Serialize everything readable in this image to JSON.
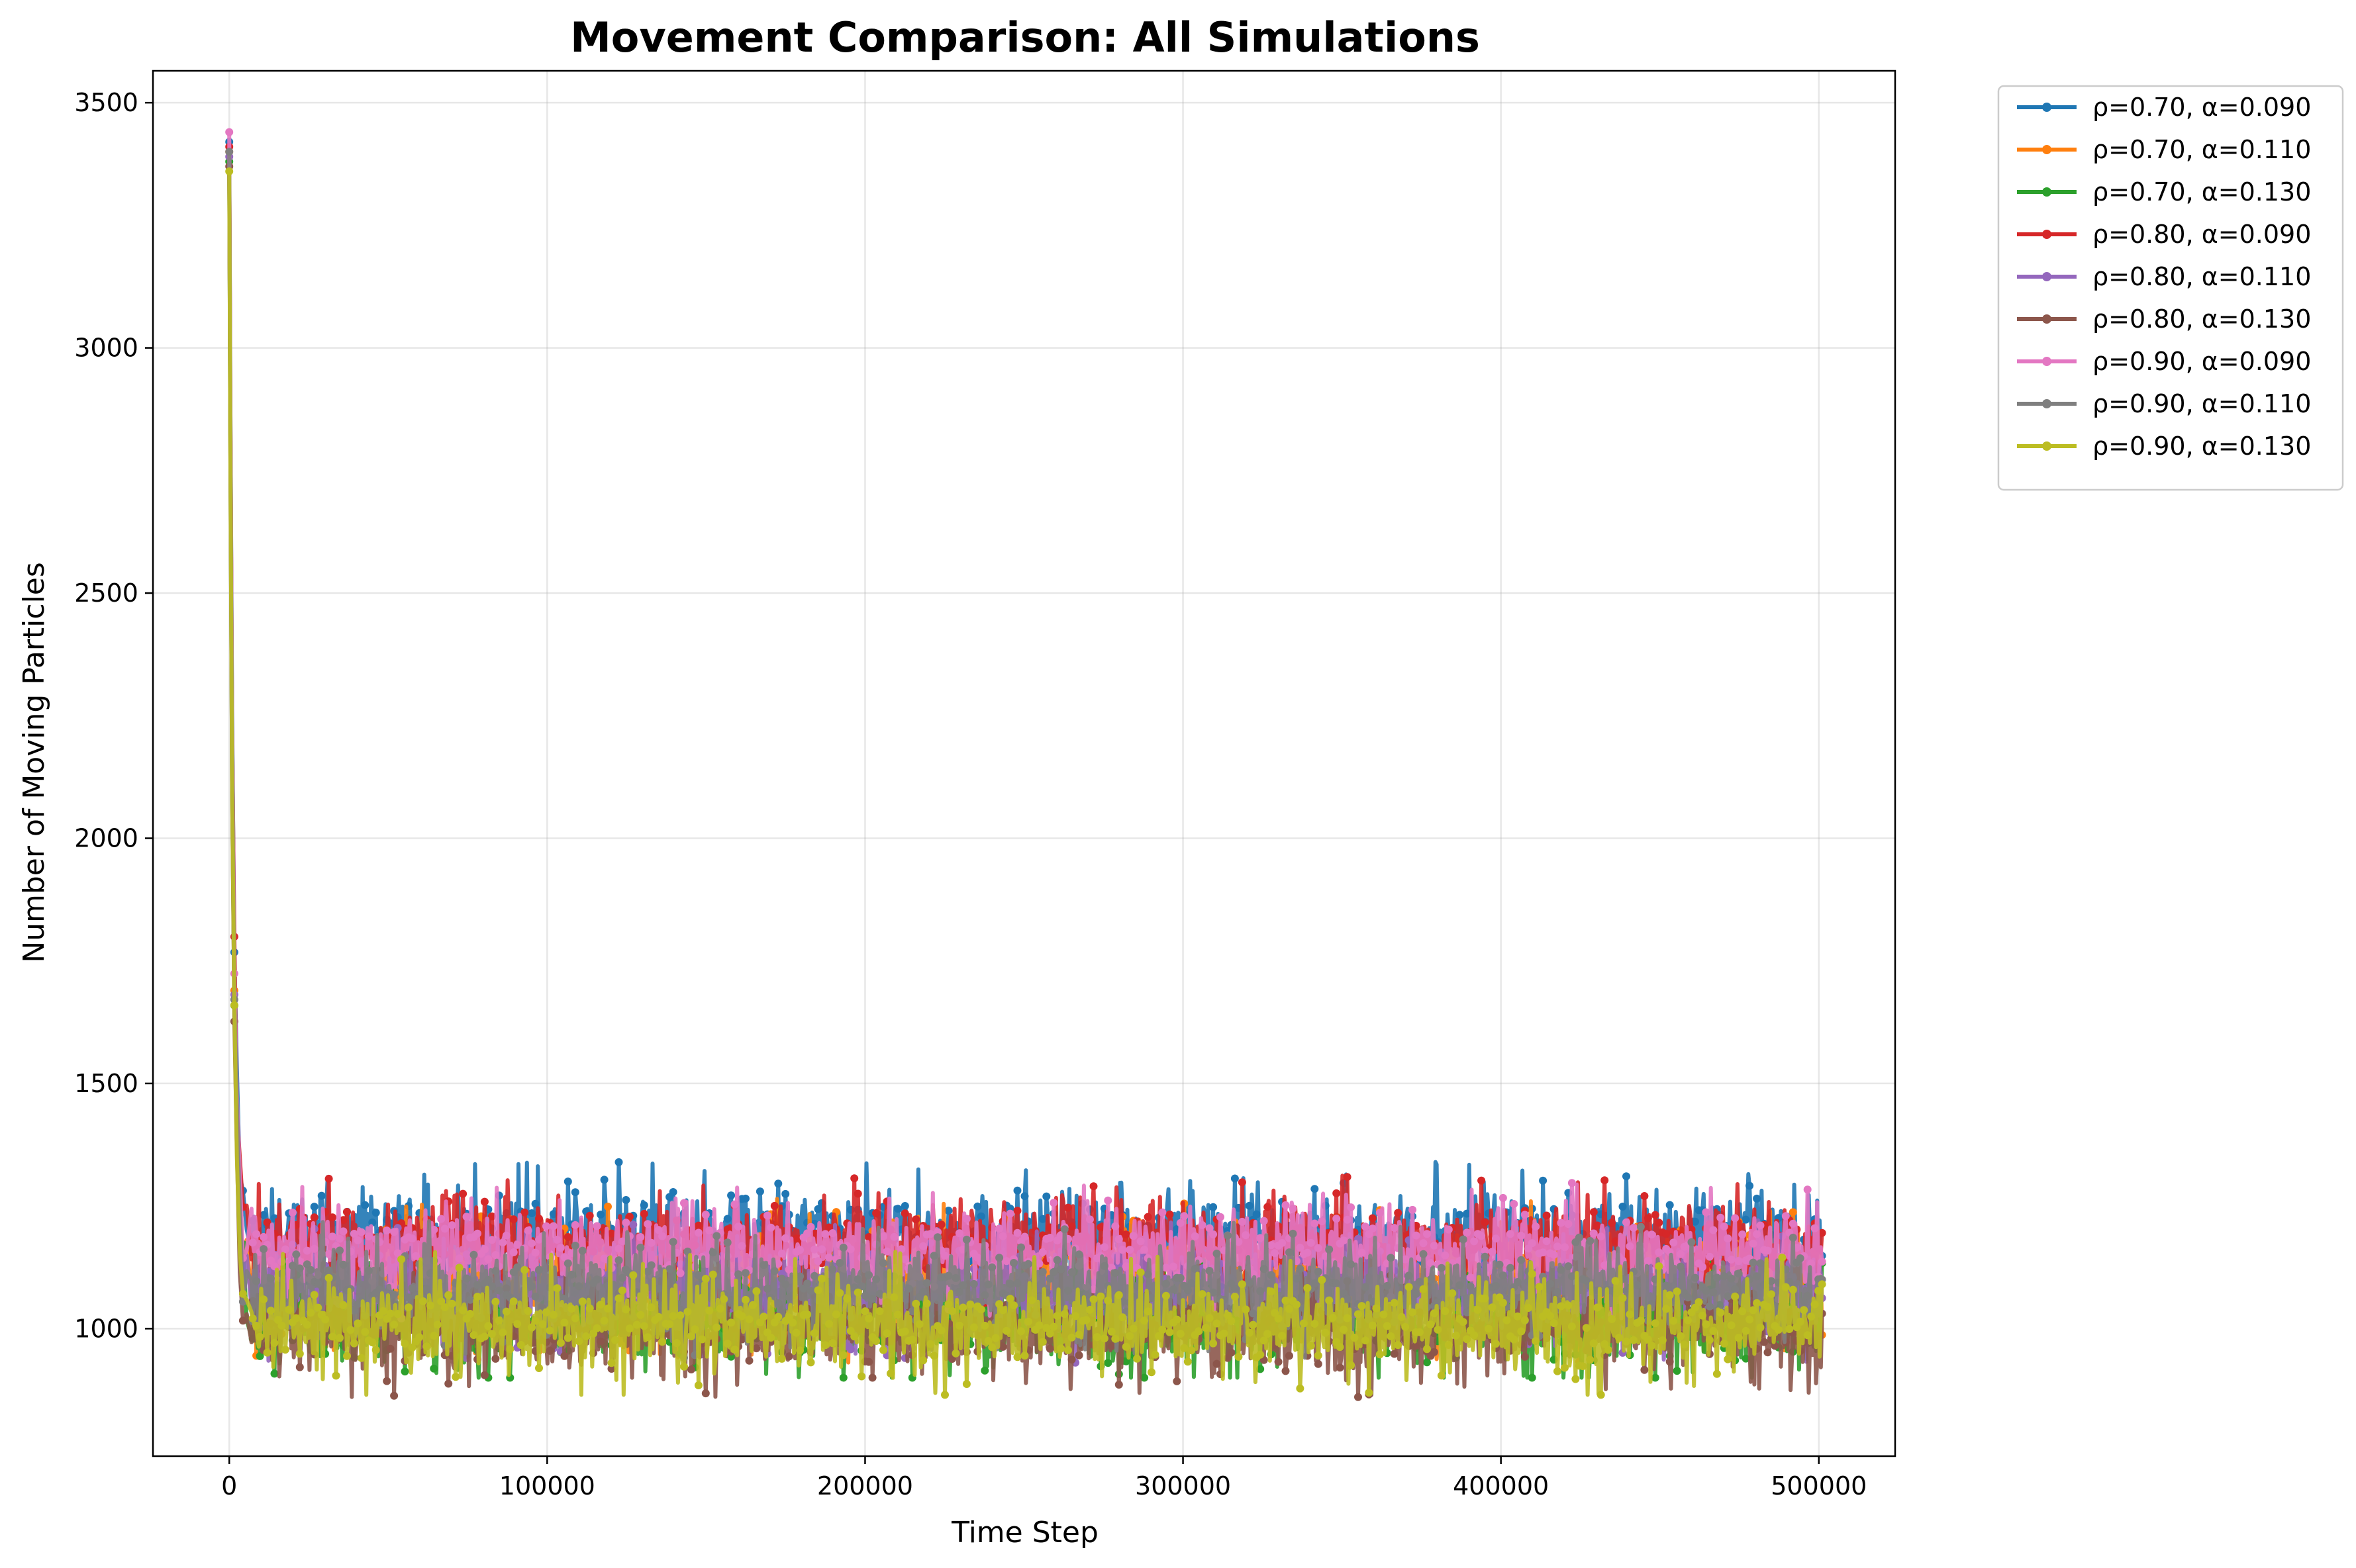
{
  "chart_data": {
    "type": "line",
    "title": "Movement Comparison: All Simulations",
    "xlabel": "Time Step",
    "ylabel": "Number of Moving Particles",
    "xlim": [
      -24000,
      524000
    ],
    "ylim": [
      740,
      3565
    ],
    "xticks": [
      0,
      100000,
      200000,
      300000,
      400000,
      500000
    ],
    "yticks": [
      1000,
      1500,
      2000,
      2500,
      3000,
      3500
    ],
    "grid": true,
    "legend_position": "outside-top-right",
    "series": [
      {
        "name": "ρ=0.70, α=0.090",
        "color": "#1f77b4",
        "peak": 3420,
        "mean": 1190,
        "spread": 75,
        "max": 1365,
        "min": 1010
      },
      {
        "name": "ρ=0.70, α=0.110",
        "color": "#ff7f0e",
        "peak": 3400,
        "mean": 1100,
        "spread": 85,
        "max": 1285,
        "min": 920
      },
      {
        "name": "ρ=0.70, α=0.130",
        "color": "#2ca02c",
        "peak": 3380,
        "mean": 1020,
        "spread": 75,
        "max": 1150,
        "min": 900
      },
      {
        "name": "ρ=0.80, α=0.090",
        "color": "#d62728",
        "peak": 3410,
        "mean": 1175,
        "spread": 70,
        "max": 1350,
        "min": 1000
      },
      {
        "name": "ρ=0.80, α=0.110",
        "color": "#9467bd",
        "peak": 3390,
        "mean": 1080,
        "spread": 75,
        "max": 1260,
        "min": 930
      },
      {
        "name": "ρ=0.80, α=0.130",
        "color": "#8c564b",
        "peak": 3370,
        "mean": 1000,
        "spread": 70,
        "max": 1140,
        "min": 860
      },
      {
        "name": "ρ=0.90, α=0.090",
        "color": "#e377c2",
        "peak": 3440,
        "mean": 1160,
        "spread": 70,
        "max": 1330,
        "min": 1000
      },
      {
        "name": "ρ=0.90, α=0.110",
        "color": "#7f7f7f",
        "peak": 3400,
        "mean": 1080,
        "spread": 70,
        "max": 1250,
        "min": 930
      },
      {
        "name": "ρ=0.90, α=0.130",
        "color": "#bcbd22",
        "peak": 3360,
        "mean": 1010,
        "spread": 75,
        "max": 1170,
        "min": 865
      }
    ]
  }
}
